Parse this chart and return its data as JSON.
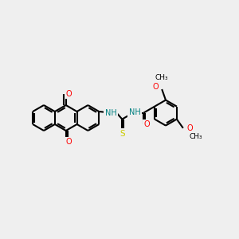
{
  "bg_color": "#efefef",
  "bond_color": "#000000",
  "bond_width": 1.5,
  "atom_colors": {
    "O": "#ff0000",
    "N": "#0000ff",
    "S": "#cccc00",
    "NH": "#008080",
    "C": "#000000"
  }
}
